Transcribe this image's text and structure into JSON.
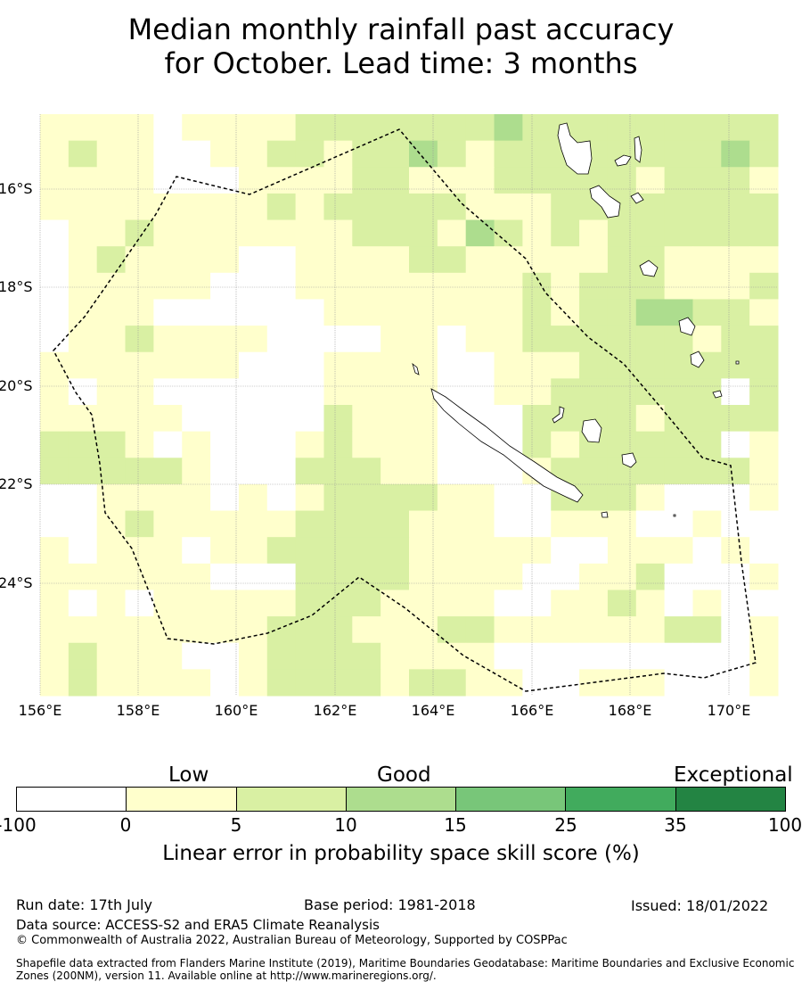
{
  "title_line1": "Median monthly rainfall past accuracy",
  "title_line2": "for October. Lead time: 3 months",
  "map": {
    "lat_labels": [
      "16°S",
      "18°S",
      "20°S",
      "22°S",
      "24°S"
    ],
    "lon_labels": [
      "156°E",
      "158°E",
      "160°E",
      "162°E",
      "164°E",
      "166°E",
      "168°E",
      "170°E"
    ],
    "extent": {
      "lon_min": 156,
      "lon_max": 171,
      "lat_max": -14.5,
      "lat_min": -26.3
    },
    "grid_cells": "Gridded skill score cells shaded by category; white = below 0",
    "boundary": "Dashed EEZ boundary of New Caledonia"
  },
  "legend": {
    "category_labels": [
      "Low",
      "Good",
      "Exceptional"
    ],
    "ticks": [
      "-100",
      "0",
      "5",
      "10",
      "15",
      "25",
      "35",
      "100"
    ],
    "colors": [
      "#ffffff",
      "#ffffcc",
      "#d9f0a3",
      "#addd8e",
      "#78c679",
      "#41ab5d",
      "#238443"
    ],
    "axis_label": "Linear error in probability space skill score (%)"
  },
  "footer": {
    "run_date": "Run date: 17th July",
    "base_period": "Base period: 1981-2018",
    "issued": "Issued: 18/01/2022",
    "data_source": "Data source: ACCESS-S2 and ERA5 Climate Reanalysis",
    "copyright": "© Commonwealth of Australia 2022, Australian Bureau of Meteorology, Supported by COSPPac",
    "shapefile_line1": "Shapefile data extracted from Flanders Marine Institute (2019), Maritime Boundaries Geodatabase: Maritime Boundaries and Exclusive Economic",
    "shapefile_line2": "Zones (200NM), version 11. Available online at http://www.marineregions.org/."
  }
}
